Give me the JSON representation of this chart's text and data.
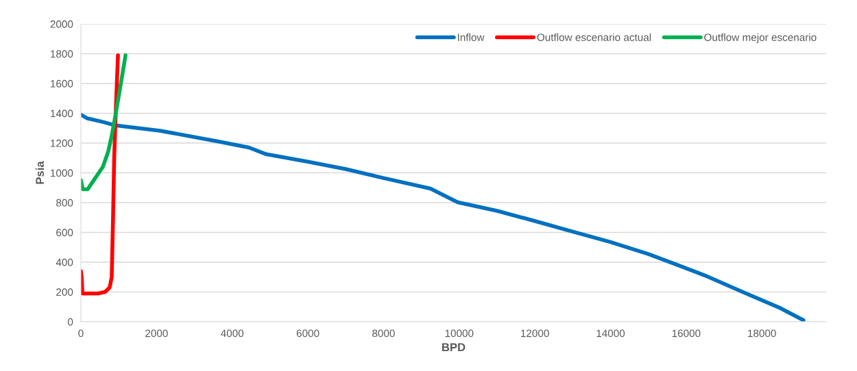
{
  "chart_data": {
    "type": "line",
    "xlabel": "BPD",
    "ylabel": "Psia",
    "xlim": [
      0,
      19700
    ],
    "xticks": [
      0,
      2000,
      4000,
      6000,
      8000,
      10000,
      12000,
      14000,
      16000,
      18000
    ],
    "ylim": [
      0,
      2000
    ],
    "yticks": [
      0,
      200,
      400,
      600,
      800,
      1000,
      1200,
      1400,
      1600,
      1800,
      2000
    ],
    "grid": "y",
    "legend": "top right",
    "marker": "none",
    "line_style": "solid",
    "series": [
      {
        "name": "Inflow",
        "color": "#0070c0",
        "x": [
          0,
          160,
          580,
          890,
          2090,
          3660,
          4440,
          4900,
          6000,
          7000,
          8000,
          9240,
          9960,
          11000,
          11990,
          13000,
          14000,
          15000,
          15615,
          16500,
          17555,
          18500,
          19100
        ],
        "values": [
          1390,
          1367,
          1342,
          1320,
          1283,
          1209,
          1170,
          1125,
          1075,
          1025,
          965,
          894,
          802,
          745,
          677,
          605,
          535,
          455,
          396,
          310,
          193,
          90,
          10
        ]
      },
      {
        "name": "Outflow escenario actual",
        "color": "#ff0000",
        "x": [
          0,
          20,
          40,
          200,
          450,
          640,
          760,
          815,
          850,
          880,
          910,
          950,
          980
        ],
        "values": [
          340,
          300,
          190,
          190,
          190,
          200,
          230,
          300,
          700,
          1100,
          1330,
          1600,
          1790
        ]
      },
      {
        "name": "Outflow mejor escenario",
        "color": "#00b050",
        "x": [
          0,
          50,
          180,
          340,
          580,
          725,
          815,
          905,
          1030,
          1180
        ],
        "values": [
          950,
          890,
          890,
          950,
          1040,
          1145,
          1250,
          1375,
          1560,
          1790
        ]
      }
    ]
  }
}
